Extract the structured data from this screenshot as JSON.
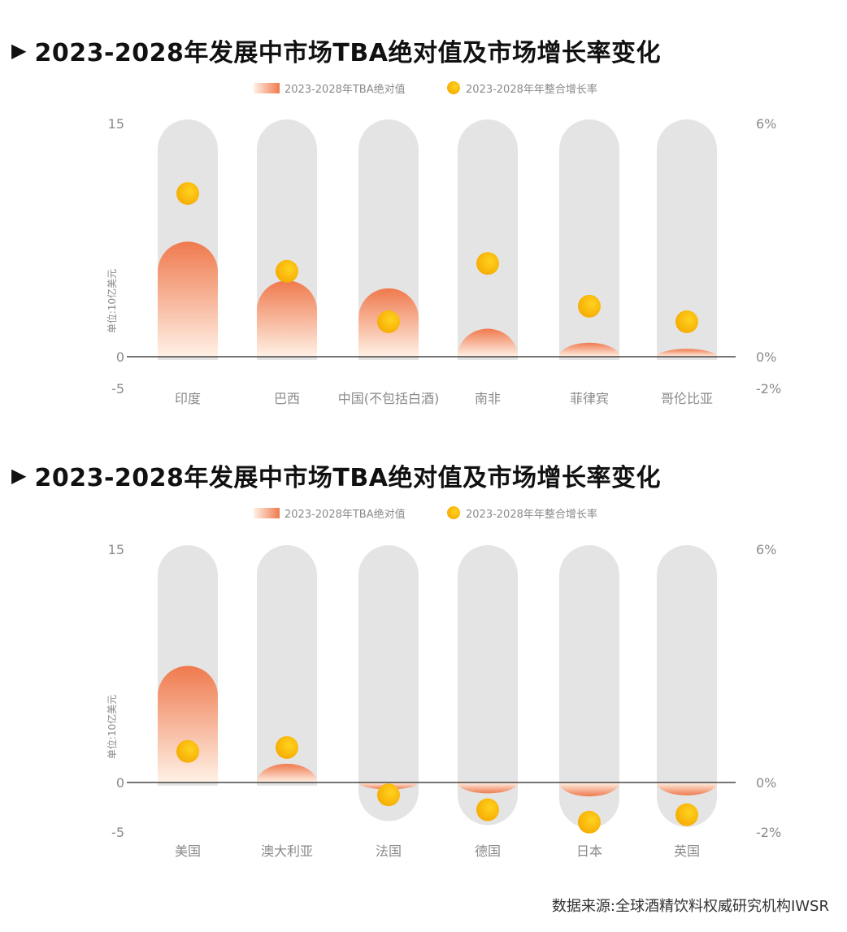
{
  "charts": [
    {
      "title": "2023-2028年发展中市场TBA绝对值及市场增长率变化",
      "legend": {
        "bar_label": "2023-2028年TBA绝对值",
        "dot_label": "2023-2028年年整合增长率"
      },
      "y_left": {
        "label": "单位:10亿美元",
        "ticks": [
          "15",
          "0",
          "-5"
        ],
        "min": -5,
        "max": 15
      },
      "y_right": {
        "ticks": [
          "6%",
          "0%",
          "-2%"
        ],
        "min": -2,
        "max": 6
      },
      "colors": {
        "bar_top": "#ef7a4e",
        "bar_bottom": "#fff1e6",
        "track": "#e4e4e4",
        "dot_outer": "#f5a800",
        "dot_inner": "#ffd21f"
      }
    },
    {
      "title": "2023-2028年发展中市场TBA绝对值及市场增长率变化",
      "legend": {
        "bar_label": "2023-2028年TBA绝对值",
        "dot_label": "2023-2028年年整合增长率"
      },
      "y_left": {
        "label": "单位:10亿美元",
        "ticks": [
          "15",
          "0",
          "-5"
        ],
        "min": -5,
        "max": 15
      },
      "y_right": {
        "ticks": [
          "6%",
          "0%",
          "-2%"
        ],
        "min": -2,
        "max": 6
      },
      "colors": {
        "bar_top": "#ef7a4e",
        "bar_bottom": "#fff1e6",
        "track": "#e4e4e4",
        "dot_outer": "#f5a800",
        "dot_inner": "#ffd21f"
      }
    }
  ],
  "chart_data": [
    {
      "type": "bar",
      "categories": [
        "印度",
        "巴西",
        "中国(不包括白酒)",
        "南非",
        "菲律宾",
        "哥伦比亚"
      ],
      "series": [
        {
          "name": "2023-2028年TBA绝对值",
          "axis": "left",
          "values": [
            7.4,
            4.9,
            4.4,
            1.8,
            0.9,
            0.5
          ]
        },
        {
          "name": "2023-2028年年整合增长率",
          "axis": "right",
          "values": [
            4.2,
            2.2,
            0.9,
            2.4,
            1.3,
            0.9
          ]
        }
      ],
      "ylabel": "单位:10亿美元",
      "ylim": [
        -5,
        15
      ],
      "y2lim": [
        -2,
        6
      ],
      "legend_position": "top-center"
    },
    {
      "type": "bar",
      "categories": [
        "美国",
        "澳大利亚",
        "法国",
        "德国",
        "日本",
        "英国"
      ],
      "series": [
        {
          "name": "2023-2028年TBA绝对值",
          "axis": "left",
          "values": [
            7.5,
            1.2,
            -0.7,
            -1.1,
            -1.4,
            -1.3
          ]
        },
        {
          "name": "2023-2028年年整合增长率",
          "axis": "right",
          "values": [
            0.8,
            0.9,
            -0.5,
            -1.1,
            -1.6,
            -1.3
          ]
        }
      ],
      "ylabel": "单位:10亿美元",
      "ylim": [
        -5,
        15
      ],
      "y2lim": [
        -2,
        6
      ],
      "legend_position": "top-center"
    }
  ],
  "source": "数据来源:全球酒精饮料权威研究机构IWSR"
}
